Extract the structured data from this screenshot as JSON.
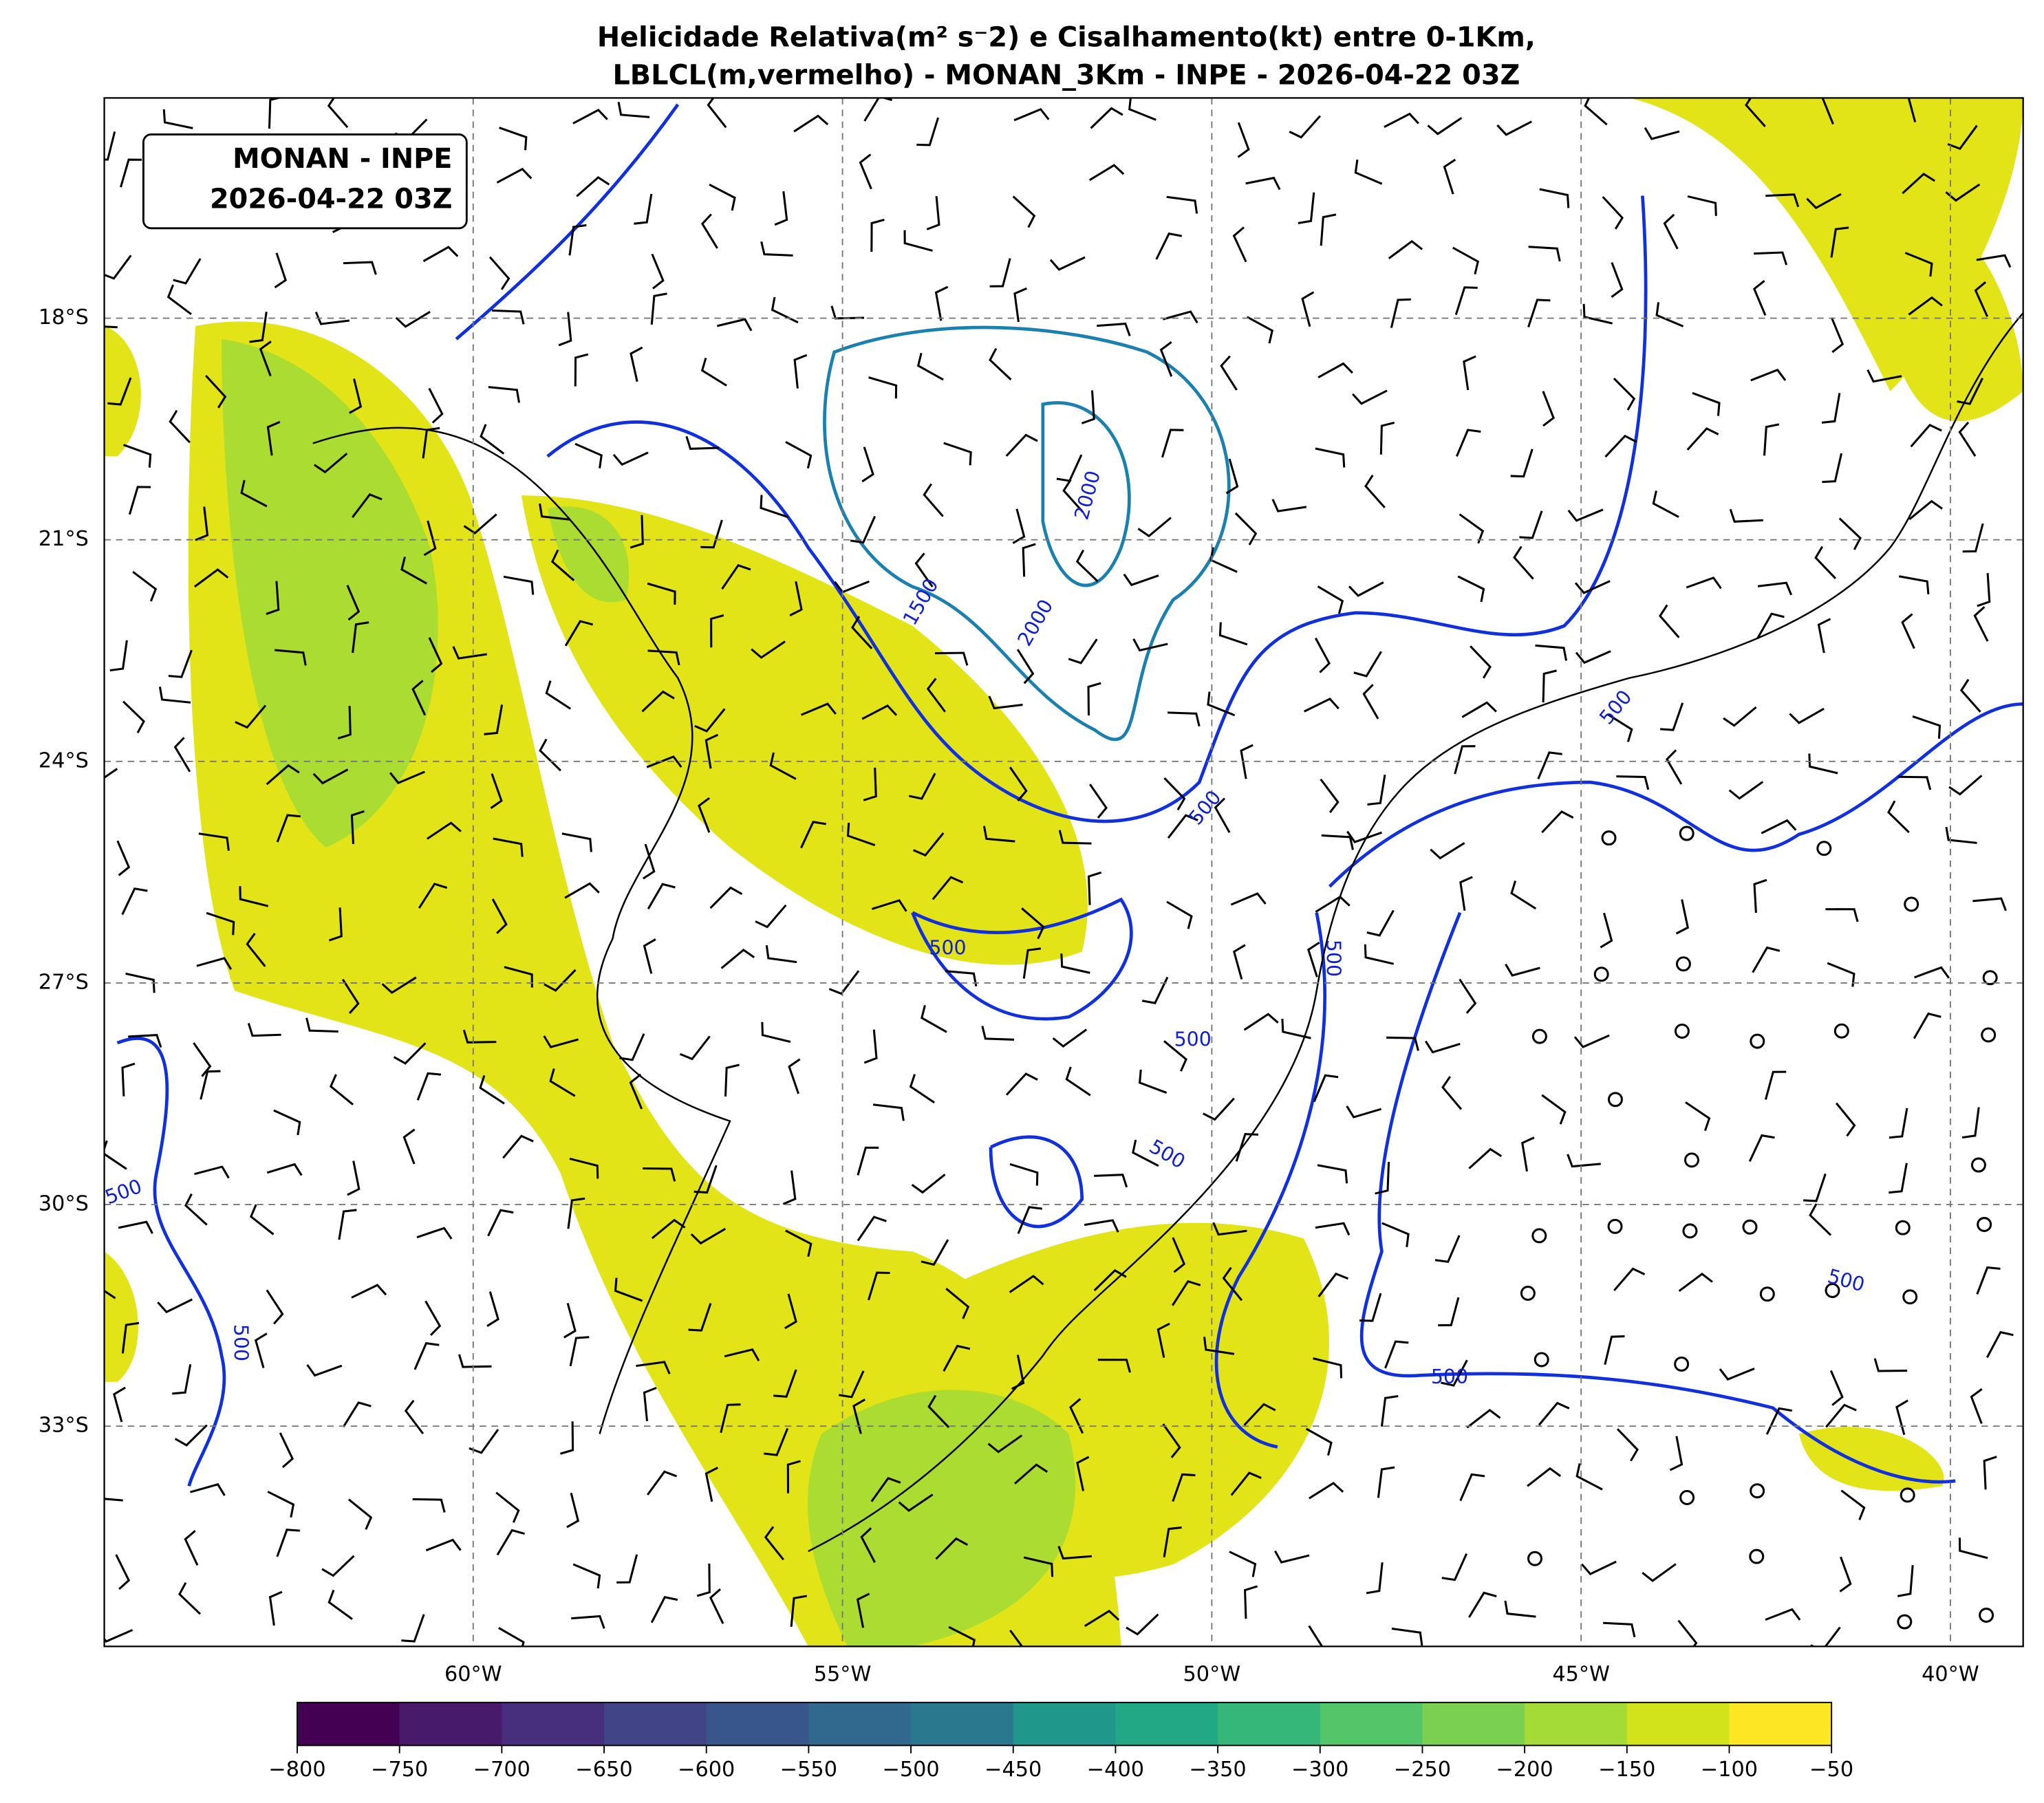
{
  "header": {
    "title_lines": [
      "Helicidade Relativa(m² s⁻2) e Cisalhamento(kt) entre 0-1Km,",
      "LBLCL(m,vermelho) - MONAN_3Km - INPE - 2026-04-22 03Z"
    ]
  },
  "map": {
    "inset_label": [
      "MONAN - INPE",
      "2026-04-22 03Z"
    ],
    "lon_ticks": [
      "60°W",
      "55°W",
      "50°W",
      "45°W",
      "40°W"
    ],
    "lat_ticks": [
      "18°S",
      "21°S",
      "24°S",
      "27°S",
      "30°S",
      "33°S"
    ],
    "contour_labels": [
      "1500",
      "2000",
      "2000",
      "500",
      "500",
      "500",
      "500",
      "500",
      "500",
      "500",
      "500",
      "500",
      "500"
    ]
  },
  "colorbar": {
    "ticks": [
      "−800",
      "−750",
      "−700",
      "−650",
      "−600",
      "−550",
      "−500",
      "−450",
      "−400",
      "−350",
      "−300",
      "−250",
      "−200",
      "−150",
      "−100",
      "−50"
    ]
  }
}
